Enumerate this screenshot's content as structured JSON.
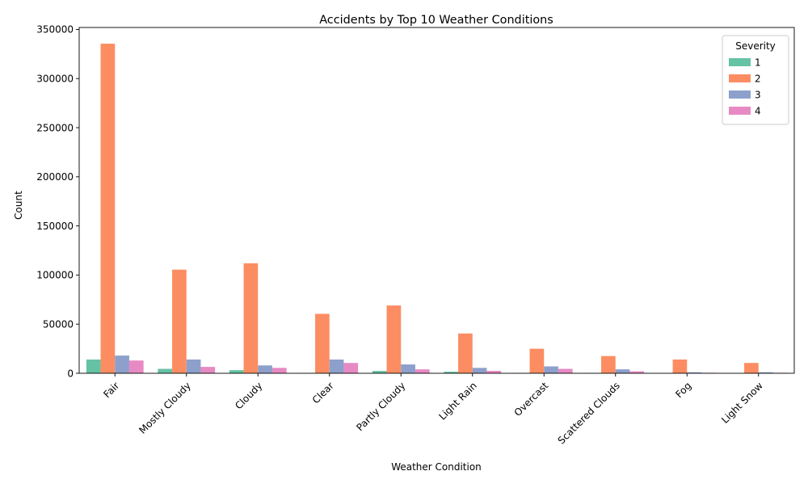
{
  "chart_data": {
    "type": "bar",
    "title": "Accidents by Top 10 Weather Conditions",
    "xlabel": "Weather Condition",
    "ylabel": "Count",
    "ylim": [
      0,
      352000
    ],
    "yticks": [
      0,
      50000,
      100000,
      150000,
      200000,
      250000,
      300000,
      350000
    ],
    "categories": [
      "Fair",
      "Mostly Cloudy",
      "Cloudy",
      "Clear",
      "Partly Cloudy",
      "Light Rain",
      "Overcast",
      "Scattered Clouds",
      "Fog",
      "Light Snow"
    ],
    "legend": {
      "title": "Severity",
      "placement": "top-right"
    },
    "grid": false,
    "series": [
      {
        "name": "1",
        "color": "#66c2a5",
        "values": [
          14000,
          4500,
          3200,
          200,
          2400,
          1600,
          300,
          200,
          100,
          100
        ]
      },
      {
        "name": "2",
        "color": "#fc8d62",
        "values": [
          335500,
          105500,
          112000,
          60500,
          69000,
          40500,
          25000,
          17500,
          14000,
          10500
        ]
      },
      {
        "name": "3",
        "color": "#8da0cb",
        "values": [
          18000,
          14000,
          8000,
          14000,
          9000,
          5500,
          7000,
          4000,
          1000,
          1000
        ]
      },
      {
        "name": "4",
        "color": "#e78ac3",
        "values": [
          13000,
          6500,
          5500,
          10500,
          4000,
          2500,
          4500,
          2000,
          500,
          500
        ]
      }
    ]
  }
}
